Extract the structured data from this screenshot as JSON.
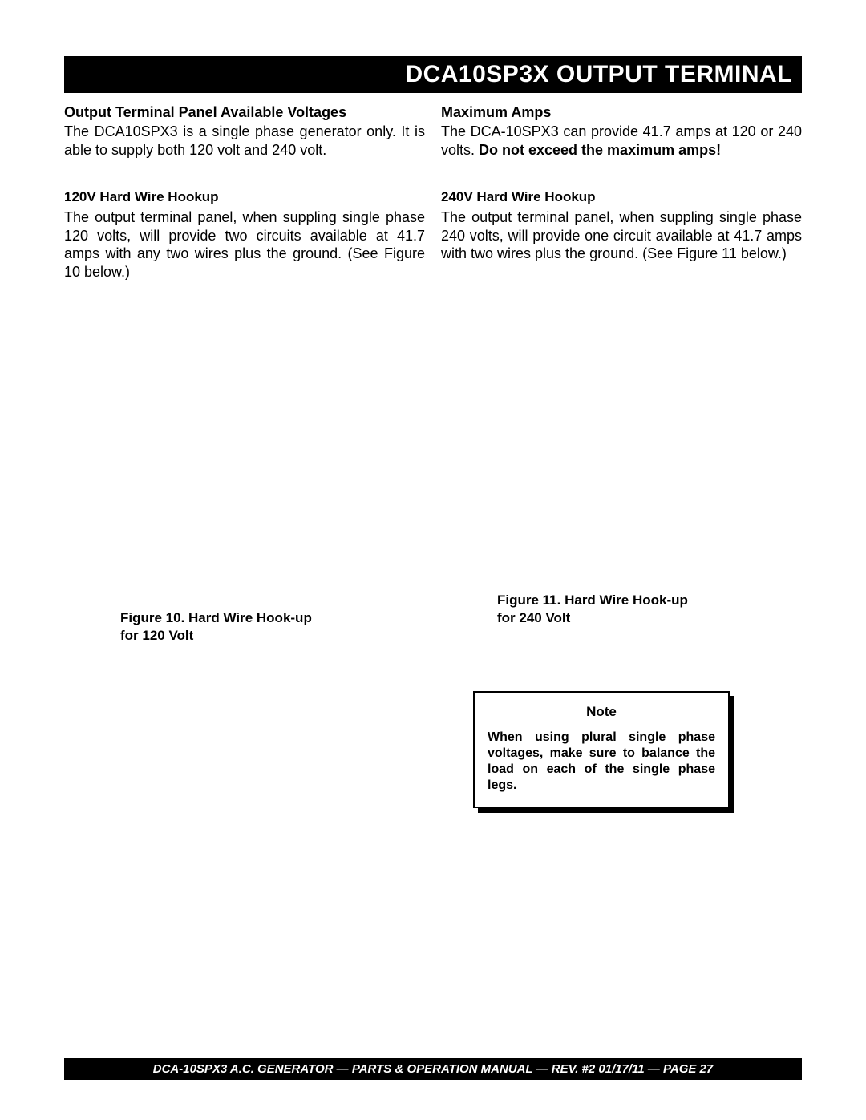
{
  "header": {
    "title": "DCA10SP3X OUTPUT TERMINAL"
  },
  "left": {
    "h1": "Output Terminal Panel Available Voltages",
    "p1": "The DCA10SPX3 is a single phase generator only. It is able to supply both 120 volt and 240 volt.",
    "h2": "120V Hard Wire Hookup",
    "p2": "The output terminal panel, when suppling single phase 120 volts, will provide two circuits available at 41.7 amps with any two wires plus the ground. (See Figure  10 below.)",
    "fig_caption_l1": "Figure 10.  Hard Wire Hook-up",
    "fig_caption_l2": "for 120 Volt"
  },
  "right": {
    "h1": "Maximum Amps",
    "p1a": "The DCA-10SPX3 can provide 41.7 amps at 120 or 240 volts.  ",
    "p1b": "Do not exceed the maximum amps!",
    "h2": "240V Hard Wire Hookup",
    "p2": "The output terminal panel, when suppling single phase 240 volts, will provide one circuit available at 41.7 amps with two wires plus the ground. (See Figure 11 below.)",
    "fig_caption_l1": "Figure 11.  Hard Wire Hook-up",
    "fig_caption_l2": "for 240 Volt",
    "note_title": "Note",
    "note_body": "When using plural single phase voltages, make sure to balance the load on each of the single phase legs."
  },
  "footer": {
    "text": "DCA-10SPX3   A.C. GENERATOR — PARTS & OPERATION MANUAL — REV. #2  01/17/11 — PAGE 27"
  }
}
